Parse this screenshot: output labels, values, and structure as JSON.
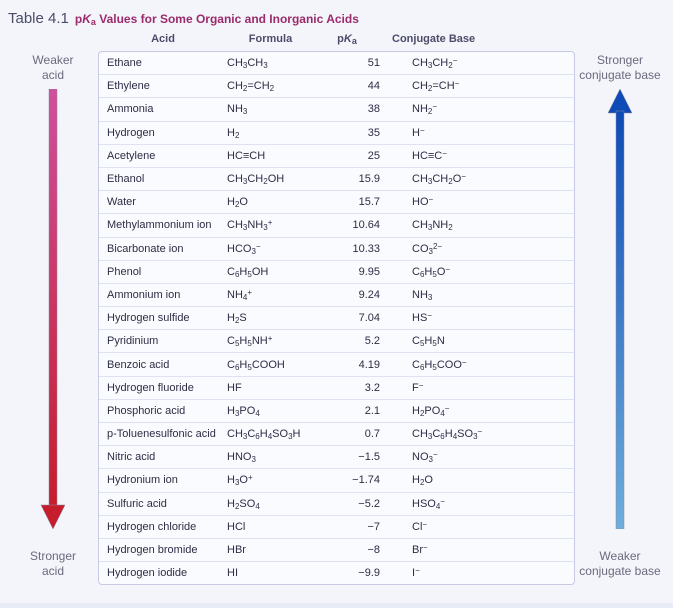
{
  "title_number": "Table 4.1",
  "title_html": "p<i>K</i><sub>a</sub> Values for Some Organic and Inorganic Acids",
  "headers": {
    "acid": "Acid",
    "formula": "Formula",
    "pka_html": "p<i>K</i><sub>a</sub>",
    "conjugate": "Conjugate Base"
  },
  "left_top": "Weaker\nacid",
  "left_bottom": "Stronger\nacid",
  "right_top": "Stronger\nconjugate base",
  "right_bottom": "Weaker\nconjugate base",
  "arrow_left": {
    "top_color": "#d04f9c",
    "bottom_color": "#c61d2c"
  },
  "arrow_right": {
    "top_color": "#0f4bb6",
    "bottom_color": "#6faedc"
  },
  "rows": [
    {
      "acid": "Ethane",
      "formula": "CH<sub>3</sub>CH<sub>3</sub>",
      "pka": "51",
      "conj": "CH<sub>3</sub>CH<sub>2</sub><sup>−</sup>"
    },
    {
      "acid": "Ethylene",
      "formula": "CH<sub>2</sub>=CH<sub>2</sub>",
      "pka": "44",
      "conj": "CH<sub>2</sub>=CH<sup>−</sup>"
    },
    {
      "acid": "Ammonia",
      "formula": "NH<sub>3</sub>",
      "pka": "38",
      "conj": "NH<sub>2</sub><sup>−</sup>"
    },
    {
      "acid": "Hydrogen",
      "formula": "H<sub>2</sub>",
      "pka": "35",
      "conj": "H<sup>−</sup>"
    },
    {
      "acid": "Acetylene",
      "formula": "HC≡CH",
      "pka": "25",
      "conj": "HC≡C<sup>−</sup>"
    },
    {
      "acid": "Ethanol",
      "formula": "CH<sub>3</sub>CH<sub>2</sub>OH",
      "pka": "15.9",
      "conj": "CH<sub>3</sub>CH<sub>2</sub>O<sup>−</sup>"
    },
    {
      "acid": "Water",
      "formula": "H<sub>2</sub>O",
      "pka": "15.7",
      "conj": "HO<sup>−</sup>"
    },
    {
      "acid": "Methylammonium ion",
      "formula": "CH<sub>3</sub>NH<sub>3</sub><sup>+</sup>",
      "pka": "10.64",
      "conj": "CH<sub>3</sub>NH<sub>2</sub>"
    },
    {
      "acid": "Bicarbonate ion",
      "formula": "HCO<sub>3</sub><sup>−</sup>",
      "pka": "10.33",
      "conj": "CO<sub>3</sub><sup>2−</sup>"
    },
    {
      "acid": "Phenol",
      "formula": "C<sub>6</sub>H<sub>5</sub>OH",
      "pka": "9.95",
      "conj": "C<sub>6</sub>H<sub>5</sub>O<sup>−</sup>"
    },
    {
      "acid": "Ammonium ion",
      "formula": "NH<sub>4</sub><sup>+</sup>",
      "pka": "9.24",
      "conj": "NH<sub>3</sub>"
    },
    {
      "acid": "Hydrogen sulfide",
      "formula": "H<sub>2</sub>S",
      "pka": "7.04",
      "conj": "HS<sup>−</sup>"
    },
    {
      "acid": "Pyridinium",
      "formula": "C<sub>5</sub>H<sub>5</sub>NH<sup>+</sup>",
      "pka": "5.2",
      "conj": "C<sub>5</sub>H<sub>5</sub>N"
    },
    {
      "acid": "Benzoic acid",
      "formula": "C<sub>6</sub>H<sub>5</sub>COOH",
      "pka": "4.19",
      "conj": "C<sub>6</sub>H<sub>5</sub>COO<sup>−</sup>"
    },
    {
      "acid": "Hydrogen fluoride",
      "formula": "HF",
      "pka": "3.2",
      "conj": "F<sup>−</sup>"
    },
    {
      "acid": "Phosphoric acid",
      "formula": "H<sub>3</sub>PO<sub>4</sub>",
      "pka": "2.1",
      "conj": "H<sub>2</sub>PO<sub>4</sub><sup>−</sup>"
    },
    {
      "acid": "p-Toluenesulfonic acid",
      "formula": "CH<sub>3</sub>C<sub>6</sub>H<sub>4</sub>SO<sub>3</sub>H",
      "pka": "0.7",
      "conj": "CH<sub>3</sub>C<sub>6</sub>H<sub>4</sub>SO<sub>3</sub><sup>−</sup>"
    },
    {
      "acid": "Nitric acid",
      "formula": "HNO<sub>3</sub>",
      "pka": "−1.5",
      "conj": "NO<sub>3</sub><sup>−</sup>"
    },
    {
      "acid": "Hydronium ion",
      "formula": "H<sub>3</sub>O<sup>+</sup>",
      "pka": "−1.74",
      "conj": "H<sub>2</sub>O"
    },
    {
      "acid": "Sulfuric acid",
      "formula": "H<sub>2</sub>SO<sub>4</sub>",
      "pka": "−5.2",
      "conj": "HSO<sub>4</sub><sup>−</sup>"
    },
    {
      "acid": "Hydrogen chloride",
      "formula": "HCl",
      "pka": "−7",
      "conj": "Cl<sup>−</sup>"
    },
    {
      "acid": "Hydrogen bromide",
      "formula": "HBr",
      "pka": "−8",
      "conj": "Br<sup>−</sup>"
    },
    {
      "acid": "Hydrogen iodide",
      "formula": "HI",
      "pka": "−9.9",
      "conj": "I<sup>−</sup>"
    }
  ]
}
